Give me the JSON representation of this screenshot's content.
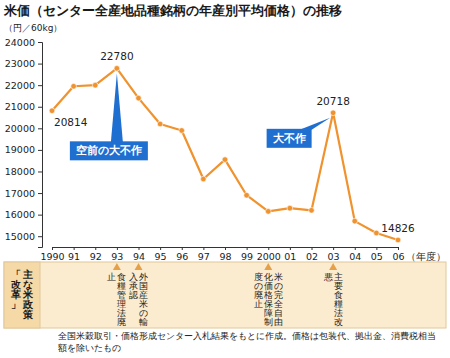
{
  "chart_data": {
    "type": "line",
    "title": "米価（センター全産地品種銘柄の年産別平均価格）の推移",
    "y_label": "（円／60kg）",
    "x_label": "（年度）",
    "categories": [
      "1990",
      "91",
      "92",
      "93",
      "94",
      "95",
      "96",
      "97",
      "98",
      "99",
      "2000",
      "01",
      "02",
      "03",
      "04",
      "05",
      "06"
    ],
    "values": [
      20814,
      21950,
      22000,
      22780,
      21400,
      20200,
      19900,
      17650,
      18550,
      16900,
      16150,
      16300,
      16200,
      20718,
      15700,
      15150,
      14826
    ],
    "value_labels": [
      "20814",
      null,
      null,
      "22780",
      null,
      null,
      null,
      null,
      null,
      null,
      null,
      null,
      null,
      "20718",
      null,
      null,
      "14826"
    ],
    "color": "#f0922e",
    "marker": "circle",
    "ylim": [
      14500,
      24000
    ],
    "yticks": [
      15000,
      16000,
      17000,
      18000,
      19000,
      20000,
      21000,
      22000,
      23000,
      24000
    ],
    "grid": false,
    "annotations": [
      {
        "text": "空前の大不作",
        "x": "93"
      },
      {
        "text": "大不作",
        "x": "03"
      }
    ],
    "policy_title": "主な米政策「改革」",
    "policies": [
      {
        "text": "食糧管理法廃止",
        "x": "93"
      },
      {
        "text": "外国産米の輸入承認",
        "x": "94"
      },
      {
        "text": "米の完全自由化価格保障制度の廃止",
        "x": "2000"
      },
      {
        "text": "主要食糧法改悪",
        "x": "03"
      }
    ],
    "note": "全国米穀取引・価格形成センター入札結果をもとに作成。価格は包装代、拠出金、消費税相当額を除いたもの"
  }
}
